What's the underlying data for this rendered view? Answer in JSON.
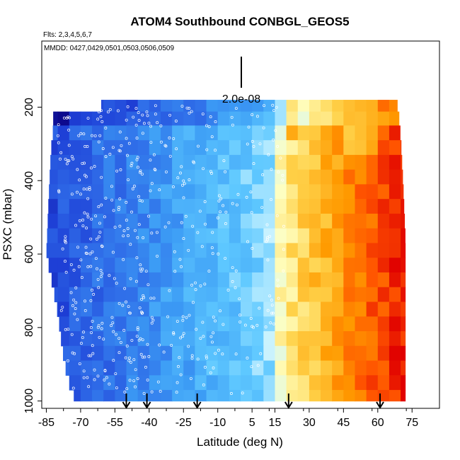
{
  "chart_data": {
    "type": "heatmap",
    "title": "ATOM4 Southbound CONBGL_GEOS5",
    "subtitle_flights": "Flts: 2,3,4,5,6,7",
    "subtitle_dates": "MMDD: 0427,0429,0501,0503,0506,0509",
    "xlabel": "Latitude (deg N)",
    "ylabel": "PSXC (mbar)",
    "xlim": [
      -87,
      87
    ],
    "ylim": [
      1020,
      20
    ],
    "x_ticks": [
      -85,
      -70,
      -55,
      -40,
      -25,
      -10,
      5,
      15,
      30,
      45,
      60,
      75
    ],
    "x_tick_labels": [
      "-85",
      "-70",
      "-55",
      "-40",
      "-25",
      "-10",
      "5",
      "15",
      "30",
      "45",
      "60",
      "75"
    ],
    "y_ticks": [
      200,
      400,
      600,
      800,
      1000
    ],
    "y_tick_labels": [
      "200",
      "400",
      "600",
      "800",
      "1000"
    ],
    "scale_bar_label": "2.0e-08",
    "arrow_latitudes": [
      -50,
      -41,
      -19,
      21,
      61
    ],
    "latitude_bin_width": 5,
    "pressure_levels": [
      180,
      212,
      250,
      290,
      330,
      370,
      410,
      450,
      490,
      530,
      570,
      610,
      650,
      690,
      730,
      770,
      810,
      850,
      890,
      930,
      970,
      1000
    ],
    "coverage_south_edge": [
      {
        "p": 180,
        "lat": -40
      },
      {
        "p": 212,
        "lat": -82
      },
      {
        "p": 260,
        "lat": -82
      },
      {
        "p": 320,
        "lat": -83
      },
      {
        "p": 450,
        "lat": -84
      },
      {
        "p": 600,
        "lat": -85
      },
      {
        "p": 660,
        "lat": -83
      },
      {
        "p": 760,
        "lat": -80
      },
      {
        "p": 860,
        "lat": -78
      },
      {
        "p": 930,
        "lat": -76
      },
      {
        "p": 970,
        "lat": -74
      },
      {
        "p": 1000,
        "lat": -72
      }
    ],
    "coverage_north_edge": [
      {
        "p": 180,
        "lat": 68
      },
      {
        "p": 212,
        "lat": 69
      },
      {
        "p": 290,
        "lat": 70
      },
      {
        "p": 410,
        "lat": 71
      },
      {
        "p": 560,
        "lat": 72
      },
      {
        "p": 1000,
        "lat": 72
      }
    ],
    "colormap": [
      "#0a0080",
      "#1e3fd6",
      "#2f6ce8",
      "#3c9cf5",
      "#5ec8ff",
      "#c8f2ff",
      "#ffffc0",
      "#ffd24a",
      "#ff9a00",
      "#ff5500",
      "#e00000"
    ],
    "value_model": "relative tracer value 0-1 rising from south (low, blue) to north (high, red); sharp transition near 15-20 N; bright white/yellow band near 18 N"
  }
}
